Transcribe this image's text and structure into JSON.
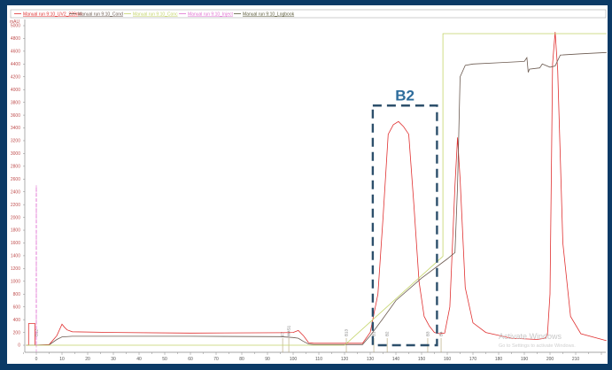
{
  "chart_data": {
    "type": "line",
    "y_unit": "mAU",
    "xlim": [
      -4,
      222
    ],
    "ylim": [
      0,
      5000
    ],
    "y_ticks": [
      0,
      200,
      400,
      600,
      800,
      1000,
      1200,
      1400,
      1600,
      1800,
      2000,
      2200,
      2400,
      2600,
      2800,
      3000,
      3200,
      3400,
      3600,
      3800,
      4000,
      4200,
      4400,
      4600,
      4800,
      5000
    ],
    "x_ticks": [
      0,
      10,
      20,
      30,
      40,
      50,
      60,
      70,
      80,
      90,
      100,
      110,
      120,
      130,
      140,
      150,
      160,
      170,
      180,
      190,
      200,
      210
    ],
    "grid": false,
    "legend_position": "top",
    "series": [
      {
        "name": "Manual run 9:10_UV2_220nm",
        "color": "#e03030",
        "x": [
          -4,
          -3,
          -3,
          -0.5,
          -0.5,
          5,
          8,
          10,
          11,
          12,
          14,
          30,
          60,
          95,
          100,
          102,
          104,
          106,
          108,
          127,
          130,
          133,
          135,
          137,
          139,
          141,
          143,
          145,
          147,
          149,
          151,
          153,
          155,
          157,
          159,
          161,
          163,
          164,
          165,
          167,
          170,
          175,
          185,
          195,
          198,
          199,
          200,
          201,
          202,
          203,
          205,
          208,
          212,
          222
        ],
        "y": [
          0,
          0,
          340,
          340,
          0,
          10,
          150,
          330,
          280,
          240,
          210,
          200,
          190,
          195,
          200,
          230,
          150,
          40,
          30,
          30,
          200,
          800,
          2000,
          3300,
          3450,
          3500,
          3420,
          3300,
          2200,
          1000,
          450,
          300,
          200,
          180,
          190,
          600,
          2500,
          3250,
          2600,
          900,
          350,
          200,
          110,
          90,
          110,
          160,
          800,
          4400,
          4900,
          4300,
          1600,
          450,
          180,
          70
        ]
      },
      {
        "name": "Manual run 9:10_Cond",
        "color": "#6b5a50",
        "x": [
          -4,
          5,
          8,
          10,
          14,
          60,
          95,
          100,
          102,
          104,
          106,
          108,
          127,
          130,
          135,
          140,
          150,
          160,
          163,
          164,
          165,
          167,
          170,
          180,
          190,
          191,
          191.5,
          192,
          196,
          197,
          200,
          202,
          204,
          212,
          222
        ],
        "y": [
          0,
          5,
          90,
          130,
          140,
          140,
          135,
          120,
          110,
          60,
          20,
          10,
          10,
          150,
          420,
          700,
          1050,
          1350,
          1450,
          2500,
          4200,
          4380,
          4400,
          4420,
          4440,
          4500,
          4270,
          4320,
          4340,
          4400,
          4350,
          4370,
          4540,
          4560,
          4580
        ]
      },
      {
        "name": "Manual run 9:10_Conc",
        "color": "#c4d46a",
        "x": [
          -4,
          120,
          158.3,
          158.3,
          222
        ],
        "y": [
          0,
          0,
          1390,
          4875,
          4875
        ]
      },
      {
        "name": "Manual run 9:10_Inject",
        "color": "#e070d0",
        "x": [
          0,
          0
        ],
        "y": [
          0,
          2500
        ]
      },
      {
        "name": "Manual run 9:10_Logbook",
        "color": "#5a5a3a"
      }
    ],
    "markers": [
      {
        "x": 0,
        "label": "B12"
      },
      {
        "x": 95.9,
        "label": "F7"
      },
      {
        "x": 98.3,
        "label": "W4S1"
      },
      {
        "x": 120.7,
        "label": "B13"
      },
      {
        "x": 131.4,
        "label": "B1"
      },
      {
        "x": 136.6,
        "label": "B2"
      },
      {
        "x": 152.4,
        "label": "B3"
      },
      {
        "x": 157.6,
        "label": "B4"
      }
    ],
    "annotations": [
      {
        "text": "B2",
        "x_range": [
          131,
          156
        ],
        "y_range": [
          0,
          3750
        ],
        "color": "#2c4f6b"
      }
    ]
  },
  "watermark": {
    "line1": "Activate Windows",
    "line2": "Go to Settings to activate Windows."
  }
}
